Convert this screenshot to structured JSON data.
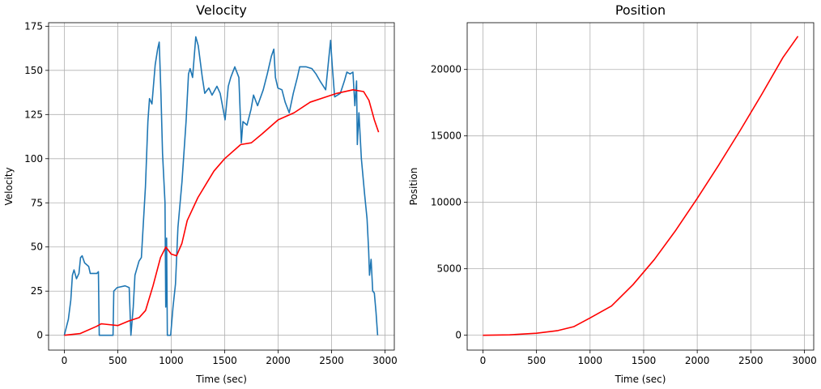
{
  "chart_data": [
    {
      "type": "line",
      "title": "Velocity",
      "xlabel": "Time (sec)",
      "ylabel": "Velocity",
      "grid": true,
      "xlim": [
        -147,
        3087
      ],
      "xticks": [
        0,
        500,
        1000,
        1500,
        2000,
        2500,
        3000
      ],
      "ylim": [
        -8.4,
        177
      ],
      "yticks": [
        0,
        25,
        50,
        75,
        100,
        125,
        150,
        175
      ],
      "series": [
        {
          "color": "#1f77b4",
          "x": [
            0,
            38,
            61,
            76,
            91,
            114,
            137,
            152,
            167,
            190,
            228,
            243,
            304,
            319,
            327,
            456,
            463,
            494,
            569,
            607,
            623,
            645,
            661,
            699,
            721,
            759,
            782,
            797,
            820,
            850,
            873,
            888,
            904,
            919,
            942,
            949,
            957,
            964,
            995,
            1017,
            1040,
            1063,
            1101,
            1139,
            1162,
            1177,
            1200,
            1230,
            1253,
            1291,
            1314,
            1352,
            1382,
            1428,
            1458,
            1504,
            1534,
            1557,
            1595,
            1633,
            1656,
            1671,
            1709,
            1747,
            1770,
            1808,
            1861,
            1899,
            1937,
            1960,
            1975,
            1998,
            2036,
            2066,
            2104,
            2142,
            2180,
            2202,
            2263,
            2316,
            2354,
            2392,
            2445,
            2468,
            2491,
            2506,
            2529,
            2582,
            2620,
            2643,
            2673,
            2700,
            2718,
            2734,
            2741,
            2756,
            2779,
            2809,
            2832,
            2847,
            2855,
            2870,
            2885,
            2900,
            2916,
            2931
          ],
          "values": [
            0,
            9,
            20,
            34,
            37,
            32,
            35,
            44,
            45,
            41,
            39,
            35,
            35,
            36,
            0,
            0,
            25,
            27,
            28,
            27,
            0,
            16,
            34,
            42,
            44,
            84,
            121,
            134,
            131,
            153,
            162,
            166,
            137,
            103,
            75,
            16,
            55,
            0,
            0,
            16,
            29,
            61,
            87,
            121,
            148,
            151,
            146,
            169,
            164,
            146,
            137,
            140,
            136,
            141,
            137,
            122,
            141,
            146,
            152,
            146,
            109,
            121,
            119,
            128,
            136,
            130,
            139,
            148,
            158,
            162,
            146,
            140,
            139,
            132,
            126,
            137,
            146,
            152,
            152,
            151,
            148,
            144,
            139,
            153,
            167,
            153,
            135,
            137,
            144,
            149,
            148,
            149,
            130,
            144,
            108,
            126,
            100,
            80,
            66,
            48,
            34,
            43,
            25,
            24,
            13,
            0
          ]
        },
        {
          "color": "#ff0000",
          "x": [
            0,
            150,
            300,
            345,
            500,
            600,
            700,
            760,
            830,
            900,
            950,
            1000,
            1050,
            1100,
            1150,
            1250,
            1400,
            1500,
            1650,
            1750,
            1850,
            2000,
            2150,
            2300,
            2450,
            2550,
            2700,
            2800,
            2850,
            2900,
            2940
          ],
          "values": [
            0,
            1,
            5,
            6.5,
            5.5,
            8,
            10,
            14,
            28,
            44,
            50,
            46,
            45,
            52,
            65,
            78,
            93,
            100,
            108,
            109,
            114,
            122,
            126,
            132,
            135,
            137,
            139,
            138,
            133,
            122,
            115
          ]
        }
      ]
    },
    {
      "type": "line",
      "title": "Position",
      "xlabel": "Time (sec)",
      "ylabel": "Position",
      "grid": true,
      "xlim": [
        -147,
        3087
      ],
      "xticks": [
        0,
        500,
        1000,
        1500,
        2000,
        2500,
        3000
      ],
      "ylim": [
        -1120,
        23520
      ],
      "yticks": [
        0,
        5000,
        10000,
        15000,
        20000
      ],
      "series": [
        {
          "color": "#ff0000",
          "x": [
            0,
            250,
            500,
            700,
            850,
            1000,
            1200,
            1400,
            1600,
            1800,
            2000,
            2200,
            2400,
            2600,
            2800,
            2940
          ],
          "values": [
            0,
            30,
            150,
            350,
            650,
            1300,
            2200,
            3800,
            5700,
            7900,
            10300,
            12800,
            15400,
            18100,
            20900,
            22500
          ]
        }
      ]
    }
  ]
}
